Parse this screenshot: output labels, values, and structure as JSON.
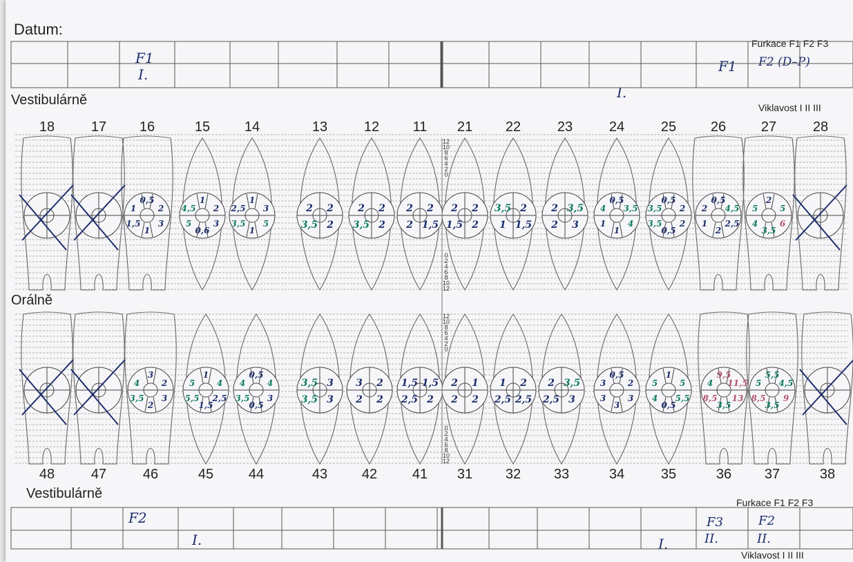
{
  "document": {
    "header_label": "Datum:",
    "section_vestibular_top": "Vestibulárně",
    "section_oral": "Orálně",
    "section_vestibular_bottom": "Vestibulárně",
    "furcation_label_top": "Furkace F1 F2 F3",
    "mobility_label_top": "Viklavost I II III",
    "furcation_label_bottom": "Furkace F1 F2 F3",
    "mobility_label_bottom": "Viklavost I II III"
  },
  "upper_teeth": [
    "18",
    "17",
    "16",
    "15",
    "14",
    "13",
    "12",
    "11",
    "21",
    "22",
    "23",
    "24",
    "25",
    "26",
    "27",
    "28"
  ],
  "lower_teeth": [
    "48",
    "47",
    "46",
    "45",
    "44",
    "43",
    "42",
    "41",
    "31",
    "32",
    "33",
    "34",
    "35",
    "36",
    "37",
    "38"
  ],
  "scale_marks": [
    "12",
    "10",
    "8",
    "6",
    "4",
    "2",
    "0"
  ],
  "top_table_notes": {
    "furcation_16": "F1",
    "mobility_16": "I.",
    "mobility_24": "I.",
    "furcation_26": "F1",
    "furcation_27": "F2 (D–P)"
  },
  "bottom_table_notes": {
    "furcation_46": "F2",
    "mobility_45": "I.",
    "mobility_35": "I.",
    "furcation_36": "F3",
    "mobility_36": "II.",
    "furcation_37": "F2",
    "mobility_37": "II."
  },
  "upper_measurements": [
    {
      "tooth": "18",
      "status": "missing",
      "values": []
    },
    {
      "tooth": "17",
      "status": "missing",
      "values": []
    },
    {
      "tooth": "16",
      "values": [
        "1",
        "0,5",
        "2",
        "1,5",
        "1",
        "3"
      ]
    },
    {
      "tooth": "15",
      "values": [
        "4,5",
        "1",
        "2",
        "5",
        "0,6",
        "3"
      ]
    },
    {
      "tooth": "14",
      "values": [
        "2,5",
        "1",
        "3",
        "3,5",
        "1",
        "5"
      ]
    },
    {
      "tooth": "13",
      "values": [
        "2",
        "2",
        "3,5",
        "2"
      ]
    },
    {
      "tooth": "12",
      "values": [
        "2",
        "2",
        "3,5",
        "2"
      ]
    },
    {
      "tooth": "11",
      "values": [
        "2",
        "2",
        "2",
        "1,5"
      ]
    },
    {
      "tooth": "21",
      "values": [
        "2",
        "2",
        "1,5",
        "2"
      ]
    },
    {
      "tooth": "22",
      "values": [
        "3,5",
        "2",
        "1",
        "1,5"
      ]
    },
    {
      "tooth": "23",
      "values": [
        "2",
        "3,5",
        "2",
        "3"
      ]
    },
    {
      "tooth": "24",
      "values": [
        "4",
        "0,5",
        "3,5",
        "1",
        "1",
        "4"
      ]
    },
    {
      "tooth": "25",
      "values": [
        "3,5",
        "0,5",
        "2",
        "3,5",
        "0,5",
        "2"
      ]
    },
    {
      "tooth": "26",
      "values": [
        "2",
        "0,5",
        "4,5",
        "1",
        "2",
        "2,5"
      ]
    },
    {
      "tooth": "27",
      "values": [
        "5",
        "2",
        "5",
        "4",
        "3,5",
        "6"
      ]
    },
    {
      "tooth": "28",
      "status": "missing",
      "values": []
    }
  ],
  "lower_measurements": [
    {
      "tooth": "48",
      "status": "missing",
      "values": []
    },
    {
      "tooth": "47",
      "status": "missing",
      "values": []
    },
    {
      "tooth": "46",
      "values": [
        "4",
        "3",
        "2",
        "3,5",
        "2",
        "3"
      ]
    },
    {
      "tooth": "45",
      "values": [
        "5",
        "1",
        "4",
        "5,5",
        "1,5",
        "2,5"
      ]
    },
    {
      "tooth": "44",
      "values": [
        "4",
        "0,5",
        "4",
        "3,5",
        "0,5",
        "3"
      ]
    },
    {
      "tooth": "43",
      "values": [
        "3,5",
        "3",
        "3,5",
        "3"
      ]
    },
    {
      "tooth": "42",
      "values": [
        "3",
        "2",
        "2",
        "2"
      ]
    },
    {
      "tooth": "41",
      "values": [
        "1,5",
        "1,5",
        "2,5",
        "2"
      ]
    },
    {
      "tooth": "31",
      "values": [
        "2",
        "1",
        "2",
        "2"
      ]
    },
    {
      "tooth": "32",
      "values": [
        "1",
        "2",
        "2,5",
        "2,5"
      ]
    },
    {
      "tooth": "33",
      "values": [
        "2",
        "3,5",
        "2,5",
        "3"
      ]
    },
    {
      "tooth": "34",
      "values": [
        "3",
        "0,5",
        "2",
        "3",
        "3",
        "3"
      ]
    },
    {
      "tooth": "35",
      "values": [
        "5",
        "1",
        "5",
        "4",
        "0,5",
        "5,5"
      ]
    },
    {
      "tooth": "36",
      "values": [
        "4",
        "9,5",
        "11,5",
        "8,5",
        "3,5",
        "13"
      ]
    },
    {
      "tooth": "37",
      "values": [
        "5",
        "5,5",
        "4,5",
        "8,5",
        "3,5",
        "9"
      ]
    },
    {
      "tooth": "38",
      "status": "missing",
      "values": []
    }
  ],
  "colors": {
    "ink_blue": "#1d2c6b",
    "ink_green": "#0f7a5f",
    "ink_red": "#b2536a",
    "line": "#555555"
  }
}
